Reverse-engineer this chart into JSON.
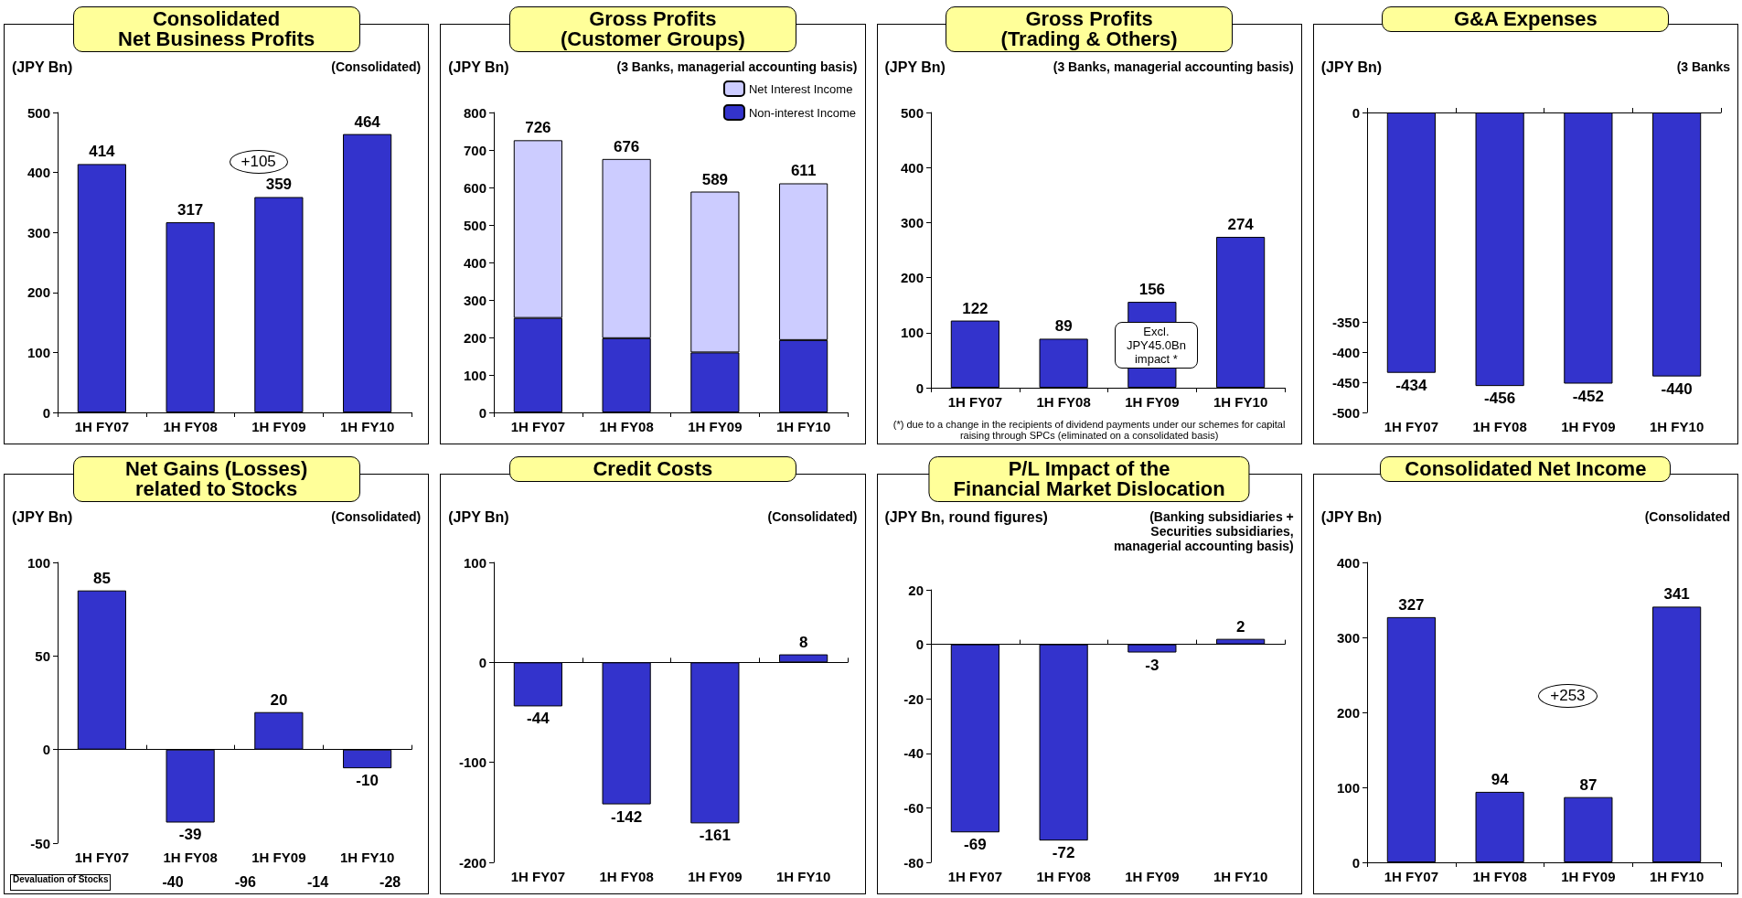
{
  "chart_data": [
    {
      "type": "bar",
      "title": "Consolidated\nNet Business Profits",
      "ylabel": "(JPY Bn)",
      "annotations": [
        "(Consolidated)",
        "+105"
      ],
      "categories": [
        "1H FY07",
        "1H FY08",
        "1H FY09",
        "1H FY10"
      ],
      "values": [
        414,
        317,
        359,
        464
      ],
      "color": "#3333cc",
      "ylim": [
        0,
        500
      ],
      "yticks": [
        0,
        100,
        200,
        300,
        400,
        500
      ],
      "data_labels": true
    },
    {
      "type": "bar",
      "title": "Gross Profits\n(Customer Groups)",
      "ylabel": "(JPY Bn)",
      "annotations": [
        "(3 Banks, managerial accounting basis)"
      ],
      "categories": [
        "1H FY07",
        "1H FY08",
        "1H FY09",
        "1H FY10"
      ],
      "stacked": true,
      "series": [
        {
          "name": "Non-interest Income",
          "color": "#3333cc",
          "values": [
            252,
            198,
            160,
            193
          ]
        },
        {
          "name": "Net Interest Income",
          "color": "#ccccff",
          "values": [
            474,
            478,
            429,
            418
          ]
        }
      ],
      "totals": [
        "726",
        "676",
        "589",
        "611"
      ],
      "legend": "top right",
      "ylim": [
        0,
        800
      ],
      "yticks": [
        0,
        100,
        200,
        300,
        400,
        500,
        600,
        700,
        800
      ]
    },
    {
      "type": "bar",
      "title": "Gross Profits\n(Trading & Others)",
      "ylabel": "(JPY Bn)",
      "annotations": [
        "(3 Banks, managerial accounting basis)",
        "(*) due to a change in the recipients of dividend payments under our schemes for capital raising through SPCs (eliminated on a consolidated basis)",
        "Excl.\nJPY45.0Bn\nimpact *"
      ],
      "categories": [
        "1H FY07",
        "1H FY08",
        "1H FY09",
        "1H FY10"
      ],
      "values": [
        122,
        89,
        156,
        274
      ],
      "color": "#3333cc",
      "ylim": [
        0,
        500
      ],
      "yticks": [
        0,
        100,
        200,
        300,
        400,
        500
      ],
      "data_labels": true
    },
    {
      "type": "bar",
      "title": "G&A Expenses",
      "ylabel": "(JPY Bn)",
      "annotations": [
        "(3 Banks"
      ],
      "categories": [
        "1H FY07",
        "1H FY08",
        "1H FY09",
        "1H FY10"
      ],
      "values": [
        -434,
        -456,
        -452,
        -440
      ],
      "color": "#3333cc",
      "ylim": [
        -500,
        0
      ],
      "yticks": [
        0,
        -350,
        -400,
        -450,
        -500
      ],
      "data_labels": true
    },
    {
      "type": "bar",
      "title": "Net Gains (Losses)\nrelated to Stocks",
      "ylabel": "(JPY Bn)",
      "annotations": [
        "(Consolidated)",
        "Devaluation of Stocks",
        "-40",
        "-96",
        "-14",
        "-28"
      ],
      "categories": [
        "1H FY07",
        "1H FY08",
        "1H FY09",
        "1H FY10"
      ],
      "values": [
        85,
        -39,
        20,
        -10
      ],
      "color": "#3333cc",
      "ylim": [
        -50,
        100
      ],
      "yticks": [
        -50,
        0,
        50,
        100
      ],
      "data_labels": true
    },
    {
      "type": "bar",
      "title": "Credit Costs",
      "ylabel": "(JPY Bn)",
      "annotations": [
        "(Consolidated)"
      ],
      "categories": [
        "1H FY07",
        "1H FY08",
        "1H FY09",
        "1H FY10"
      ],
      "values": [
        -44,
        -142,
        -161,
        8
      ],
      "color": "#3333cc",
      "ylim": [
        -200,
        100
      ],
      "yticks": [
        -200,
        -100,
        0,
        100
      ],
      "data_labels": true
    },
    {
      "type": "bar",
      "title": "P/L Impact of the\nFinancial Market Dislocation",
      "ylabel": "(JPY Bn, round figures)",
      "subtitle": "(Banking subsidiaries +\nSecurities subsidiaries,\nmanagerial accounting basis)",
      "categories": [
        "1H FY07",
        "1H FY08",
        "1H FY09",
        "1H FY10"
      ],
      "values": [
        -69,
        -72,
        -3,
        2
      ],
      "color": "#3333cc",
      "ylim": [
        -80,
        20
      ],
      "yticks": [
        -80,
        -60,
        -40,
        -20,
        0,
        20
      ],
      "data_labels": true
    },
    {
      "type": "bar",
      "title": "Consolidated Net Income",
      "ylabel": "(JPY Bn)",
      "annotations": [
        "(Consolidated",
        "+253"
      ],
      "categories": [
        "1H FY07",
        "1H FY08",
        "1H FY09",
        "1H FY10"
      ],
      "values": [
        327,
        94,
        87,
        341
      ],
      "color": "#3333cc",
      "ylim": [
        0,
        400
      ],
      "yticks": [
        0,
        100,
        200,
        300,
        400
      ],
      "data_labels": true
    }
  ]
}
